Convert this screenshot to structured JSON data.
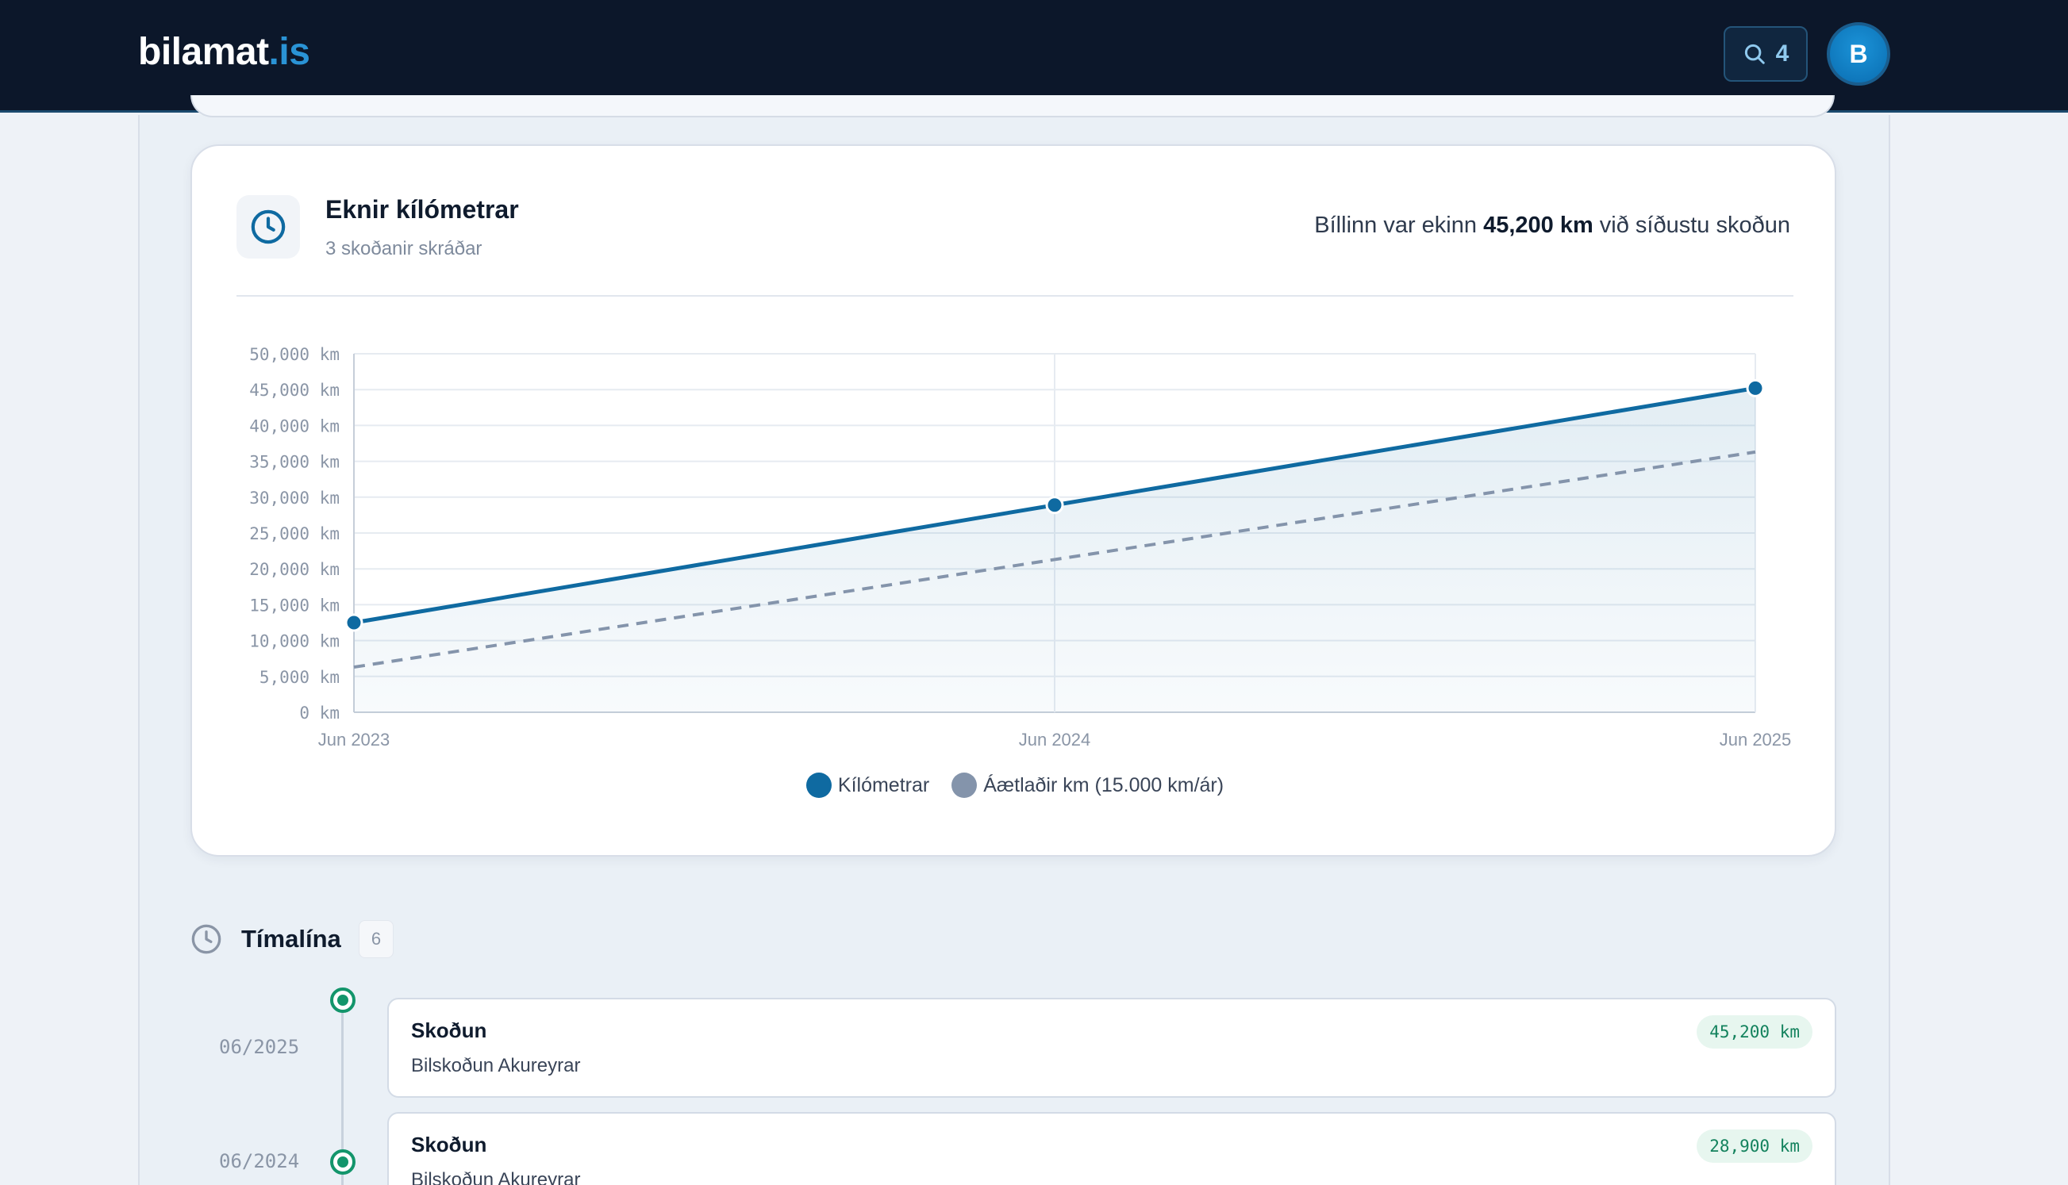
{
  "header": {
    "logo_main": "bilamat",
    "logo_tld": ".is",
    "search_count": "4",
    "avatar_initial": "B"
  },
  "km_card": {
    "title": "Eknir kílómetrar",
    "subtitle": "3 skoðanir skráðar",
    "summary_prefix": "Bíllinn var ekinn",
    "summary_value": "45,200 km",
    "summary_suffix": "við síðustu skoðun",
    "icon": "clock-icon"
  },
  "chart_data": {
    "type": "line",
    "x": [
      "Jun 2023",
      "Jun 2024",
      "Jun 2025"
    ],
    "series": [
      {
        "name": "Kílómetrar",
        "values": [
          12500,
          28900,
          45200
        ],
        "color": "#0f6aa1",
        "style": "solid",
        "markers": true,
        "fill": true
      },
      {
        "name": "Áætlaðir km (15.000 km/ár)",
        "values": [
          6300,
          21300,
          36300
        ],
        "color": "#8494ab",
        "style": "dashed",
        "markers": false
      }
    ],
    "yticks": [
      "0 km",
      "5,000 km",
      "10,000 km",
      "15,000 km",
      "20,000 km",
      "25,000 km",
      "30,000 km",
      "35,000 km",
      "40,000 km",
      "45,000 km",
      "50,000 km"
    ],
    "ylim": [
      0,
      50000
    ],
    "grid": true,
    "legend": "bottom-center"
  },
  "timeline": {
    "title": "Tímalína",
    "count": "6",
    "icon": "clock-icon",
    "items": [
      {
        "date": "06/2025",
        "title": "Skoðun",
        "subtitle": "Bilskoðun Akureyrar",
        "km": "45,200 km"
      },
      {
        "date": "06/2024",
        "title": "Skoðun",
        "subtitle": "Bilskoðun Akureyrar",
        "km": "28,900 km"
      }
    ]
  }
}
